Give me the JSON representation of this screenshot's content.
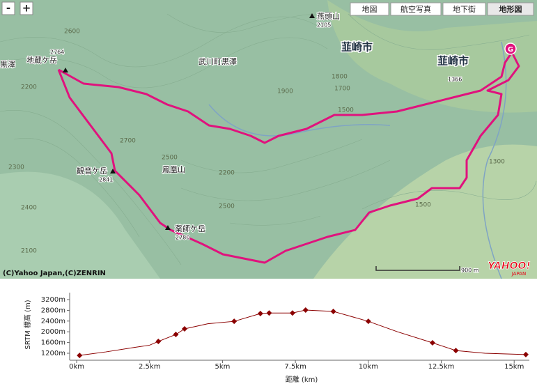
{
  "map_controls": {
    "zoom_out": "-",
    "zoom_in": "+",
    "tabs": [
      "地図",
      "航空写真",
      "地下街",
      "地形図"
    ]
  },
  "map": {
    "labels": [
      "地蔵ケ岳",
      "2764",
      "観音ケ岳",
      "2841",
      "鳳凰山",
      "薬師ケ岳",
      "2780",
      "燕頭山",
      "2105",
      "韮崎市",
      "韮崎市",
      "1366",
      "武川町黒澤",
      "黒澤",
      "2600",
      "2200",
      "2700",
      "2500",
      "2200",
      "2400",
      "2100",
      "2300",
      "1800",
      "1700",
      "1500",
      "1300",
      "1900",
      "2500",
      "1500"
    ],
    "copyright": "(C)Yahoo Japan,(C)ZENRIN",
    "scale": "900 m",
    "logo": "YAHOO!",
    "logo_sub": "JAPAN",
    "goal": "G"
  },
  "chart_data": {
    "type": "line",
    "ylabel": "SRTM 標高 (m)",
    "xlabel": "距離 (km)",
    "color": "#8b0000",
    "xlim": [
      -0.24,
      15.52
    ],
    "ylim": [
      940,
      3460
    ],
    "xticks": [
      {
        "value": 0,
        "label": "0km"
      },
      {
        "value": 2.5,
        "label": "2.5km"
      },
      {
        "value": 5,
        "label": "5km"
      },
      {
        "value": 7.5,
        "label": "7.5km"
      },
      {
        "value": 10,
        "label": "10km"
      },
      {
        "value": 12.5,
        "label": "12.5km"
      },
      {
        "value": 15,
        "label": "15km"
      }
    ],
    "yticks": [
      {
        "value": 1200,
        "label": "1200m"
      },
      {
        "value": 1600,
        "label": "1600m"
      },
      {
        "value": 2000,
        "label": "2000m"
      },
      {
        "value": 2400,
        "label": "2400m"
      },
      {
        "value": 2800,
        "label": "2800m"
      },
      {
        "value": 3200,
        "label": "3200m"
      }
    ],
    "profile": {
      "x": [
        0.1,
        1,
        2,
        2.5,
        2.8,
        3.4,
        3.7,
        4.5,
        5.4,
        6.3,
        6.6,
        7.4,
        7.85,
        8.8,
        10,
        11,
        12.2,
        13,
        14,
        15.4
      ],
      "values": [
        1120,
        1250,
        1420,
        1500,
        1640,
        1900,
        2110,
        2300,
        2390,
        2680,
        2700,
        2700,
        2810,
        2760,
        2390,
        2000,
        1590,
        1300,
        1200,
        1150
      ]
    },
    "markers": {
      "x": [
        0.1,
        2.8,
        3.4,
        3.7,
        5.4,
        6.3,
        6.6,
        7.4,
        7.85,
        8.8,
        10,
        12.2,
        13,
        15.4
      ],
      "values": [
        1120,
        1640,
        1900,
        2110,
        2390,
        2680,
        2700,
        2700,
        2810,
        2760,
        2390,
        1590,
        1300,
        1150
      ]
    }
  }
}
